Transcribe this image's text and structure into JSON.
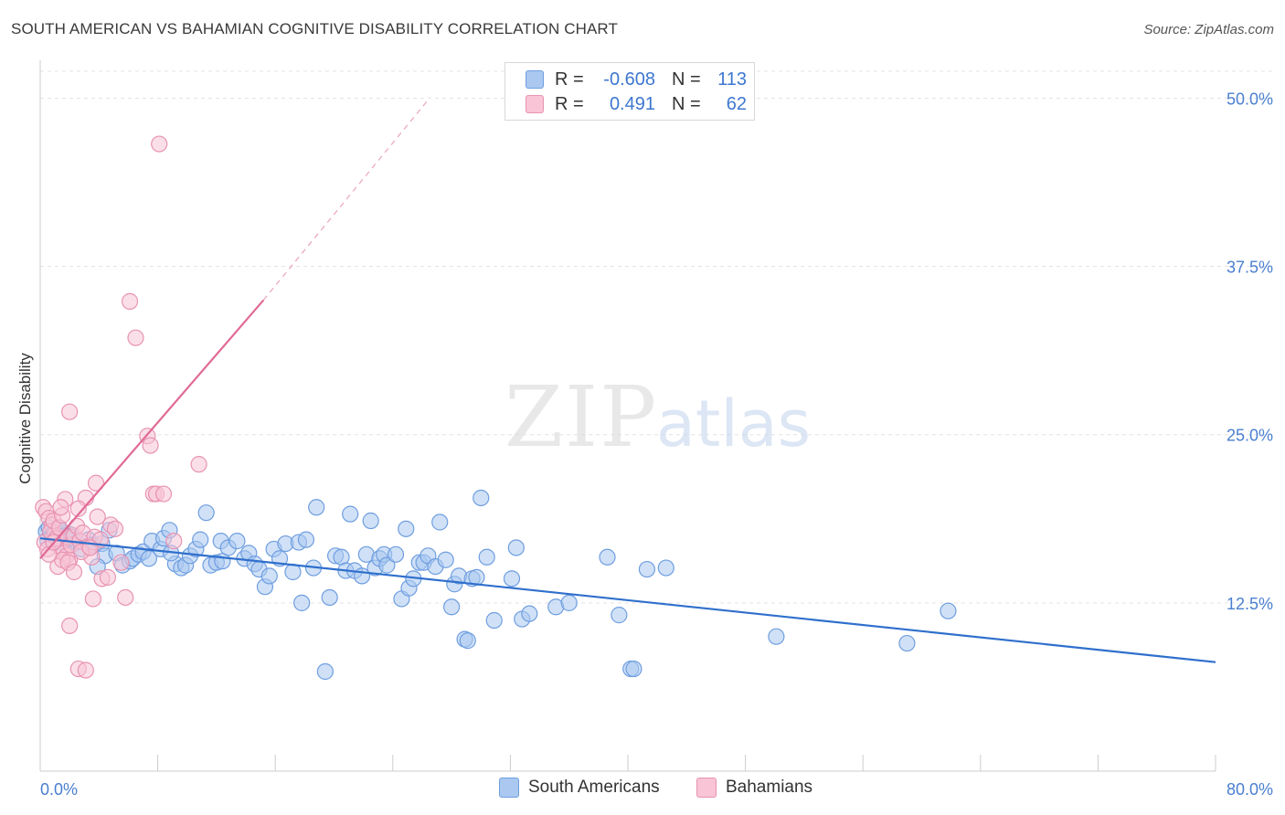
{
  "header": {
    "title": "SOUTH AMERICAN VS BAHAMIAN COGNITIVE DISABILITY CORRELATION CHART",
    "source": "Source: ZipAtlas.com"
  },
  "watermark": {
    "zip": "ZIP",
    "atlas": "atlas"
  },
  "legend": {
    "rows": [
      {
        "r_label": "R =",
        "r_value": "-0.608",
        "n_label": "N =",
        "n_value": "113",
        "color": "#aac8f0",
        "stroke": "#6f9ee0"
      },
      {
        "r_label": "R =",
        "r_value": "0.491",
        "n_label": "N =",
        "n_value": "62",
        "color": "#f8c4d6",
        "stroke": "#e893b2"
      }
    ]
  },
  "chart_data": {
    "type": "scatter",
    "title": "SOUTH AMERICAN VS BAHAMIAN COGNITIVE DISABILITY CORRELATION CHART",
    "xlabel": "",
    "ylabel": "Cognitive Disability",
    "xlim": [
      0,
      80
    ],
    "ylim": [
      0,
      52
    ],
    "x_tick_labels": [
      "0.0%",
      "80.0%"
    ],
    "y_ticks": [
      12.5,
      25.0,
      37.5,
      50.0
    ],
    "y_tick_labels": [
      "12.5%",
      "25.0%",
      "37.5%",
      "50.0%"
    ],
    "grid": true,
    "legend_position": "bottom-center",
    "series": [
      {
        "name": "South Americans",
        "color": "#6f9ee0",
        "fill": "#aac8f0",
        "trend": {
          "x": [
            0,
            80
          ],
          "y": [
            17.3,
            8.1
          ],
          "color": "#2f6fcc"
        },
        "points": [
          [
            0.4,
            17.8
          ],
          [
            0.6,
            18.1
          ],
          [
            0.8,
            17.3
          ],
          [
            1.0,
            17.9
          ],
          [
            1.2,
            17.5
          ],
          [
            1.4,
            17.0
          ],
          [
            1.6,
            17.7
          ],
          [
            1.8,
            17.2
          ],
          [
            2.0,
            17.6
          ],
          [
            2.2,
            17.4
          ],
          [
            0.5,
            17.2
          ],
          [
            0.9,
            17.6
          ],
          [
            1.3,
            18.0
          ],
          [
            1.7,
            17.5
          ],
          [
            2.1,
            17.3
          ],
          [
            2.5,
            17.0
          ],
          [
            2.8,
            16.5
          ],
          [
            3.3,
            17.2
          ],
          [
            3.6,
            16.8
          ],
          [
            4.2,
            16.9
          ],
          [
            4.4,
            16.0
          ],
          [
            4.7,
            17.9
          ],
          [
            5.2,
            16.2
          ],
          [
            5.6,
            15.3
          ],
          [
            6.1,
            15.6
          ],
          [
            6.3,
            15.8
          ],
          [
            6.7,
            16.1
          ],
          [
            7.0,
            16.3
          ],
          [
            7.4,
            15.8
          ],
          [
            7.6,
            17.1
          ],
          [
            8.2,
            16.5
          ],
          [
            8.4,
            17.3
          ],
          [
            8.8,
            17.9
          ],
          [
            9.2,
            15.4
          ],
          [
            9.6,
            15.1
          ],
          [
            9.9,
            15.3
          ],
          [
            10.2,
            16.0
          ],
          [
            10.6,
            16.5
          ],
          [
            10.9,
            17.2
          ],
          [
            11.3,
            19.2
          ],
          [
            11.6,
            15.3
          ],
          [
            12.0,
            15.5
          ],
          [
            12.4,
            15.6
          ],
          [
            12.3,
            17.1
          ],
          [
            12.8,
            16.6
          ],
          [
            13.4,
            17.1
          ],
          [
            13.9,
            15.8
          ],
          [
            14.2,
            16.2
          ],
          [
            14.6,
            15.4
          ],
          [
            14.9,
            15.0
          ],
          [
            15.3,
            13.7
          ],
          [
            15.6,
            14.5
          ],
          [
            15.9,
            16.5
          ],
          [
            16.3,
            15.8
          ],
          [
            16.7,
            16.9
          ],
          [
            17.2,
            14.8
          ],
          [
            17.6,
            17.0
          ],
          [
            17.8,
            12.5
          ],
          [
            18.1,
            17.2
          ],
          [
            18.6,
            15.1
          ],
          [
            18.8,
            19.6
          ],
          [
            19.4,
            7.4
          ],
          [
            19.7,
            12.9
          ],
          [
            20.1,
            16.0
          ],
          [
            20.5,
            15.9
          ],
          [
            20.8,
            14.9
          ],
          [
            21.1,
            19.1
          ],
          [
            21.4,
            14.9
          ],
          [
            21.9,
            14.5
          ],
          [
            22.2,
            16.1
          ],
          [
            22.5,
            18.6
          ],
          [
            22.8,
            15.1
          ],
          [
            23.1,
            15.8
          ],
          [
            23.4,
            16.1
          ],
          [
            23.6,
            15.3
          ],
          [
            24.2,
            16.1
          ],
          [
            24.6,
            12.8
          ],
          [
            24.9,
            18.0
          ],
          [
            25.1,
            13.6
          ],
          [
            25.4,
            14.3
          ],
          [
            25.8,
            15.5
          ],
          [
            26.1,
            15.5
          ],
          [
            26.4,
            16.0
          ],
          [
            26.9,
            15.2
          ],
          [
            27.2,
            18.5
          ],
          [
            27.6,
            15.7
          ],
          [
            28.0,
            12.2
          ],
          [
            28.2,
            13.9
          ],
          [
            28.5,
            14.5
          ],
          [
            28.9,
            9.8
          ],
          [
            29.1,
            9.7
          ],
          [
            29.4,
            14.3
          ],
          [
            29.7,
            14.4
          ],
          [
            30.0,
            20.3
          ],
          [
            30.4,
            15.9
          ],
          [
            30.9,
            11.2
          ],
          [
            32.1,
            14.3
          ],
          [
            32.4,
            16.6
          ],
          [
            32.8,
            11.3
          ],
          [
            33.3,
            11.7
          ],
          [
            35.1,
            12.2
          ],
          [
            36.0,
            12.5
          ],
          [
            38.6,
            15.9
          ],
          [
            39.4,
            11.6
          ],
          [
            40.2,
            7.6
          ],
          [
            40.4,
            7.6
          ],
          [
            41.3,
            15.0
          ],
          [
            42.6,
            15.1
          ],
          [
            50.1,
            10.0
          ],
          [
            59.0,
            9.5
          ],
          [
            61.8,
            11.9
          ],
          [
            3.9,
            15.2
          ],
          [
            8.9,
            16.2
          ]
        ]
      },
      {
        "name": "Bahamians",
        "color": "#e893b2",
        "fill": "#f8c4d6",
        "trend": {
          "x": [
            0,
            15.2
          ],
          "y": [
            15.8,
            35.0
          ],
          "color": "#e06a96"
        },
        "trend_extension": {
          "x": [
            15.2,
            26.5
          ],
          "y": [
            35.0,
            50.0
          ]
        },
        "points": [
          [
            0.2,
            19.6
          ],
          [
            0.4,
            19.3
          ],
          [
            0.6,
            18.8
          ],
          [
            0.8,
            18.3
          ],
          [
            1.0,
            17.6
          ],
          [
            1.2,
            17.2
          ],
          [
            1.4,
            16.6
          ],
          [
            1.6,
            16.2
          ],
          [
            1.8,
            16.0
          ],
          [
            2.0,
            15.7
          ],
          [
            0.3,
            17.0
          ],
          [
            0.5,
            16.5
          ],
          [
            0.7,
            17.8
          ],
          [
            0.9,
            18.6
          ],
          [
            1.1,
            17.3
          ],
          [
            1.3,
            18.1
          ],
          [
            1.5,
            19.0
          ],
          [
            1.7,
            20.2
          ],
          [
            1.9,
            17.4
          ],
          [
            2.1,
            16.8
          ],
          [
            2.3,
            17.5
          ],
          [
            2.5,
            18.2
          ],
          [
            2.7,
            17.1
          ],
          [
            2.9,
            17.7
          ],
          [
            3.1,
            20.3
          ],
          [
            3.3,
            16.7
          ],
          [
            3.5,
            15.9
          ],
          [
            3.7,
            17.4
          ],
          [
            3.9,
            18.9
          ],
          [
            4.1,
            17.2
          ],
          [
            1.2,
            15.2
          ],
          [
            1.5,
            15.7
          ],
          [
            1.9,
            15.5
          ],
          [
            2.3,
            14.8
          ],
          [
            2.8,
            16.3
          ],
          [
            0.6,
            16.1
          ],
          [
            0.9,
            17.0
          ],
          [
            1.4,
            19.6
          ],
          [
            2.6,
            19.5
          ],
          [
            3.4,
            16.6
          ],
          [
            3.8,
            21.4
          ],
          [
            4.2,
            14.3
          ],
          [
            4.6,
            14.4
          ],
          [
            4.8,
            18.3
          ],
          [
            5.1,
            18.0
          ],
          [
            5.5,
            15.5
          ],
          [
            5.8,
            12.9
          ],
          [
            6.1,
            34.9
          ],
          [
            6.5,
            32.2
          ],
          [
            7.3,
            24.9
          ],
          [
            7.5,
            24.2
          ],
          [
            7.7,
            20.6
          ],
          [
            7.9,
            20.6
          ],
          [
            8.1,
            46.6
          ],
          [
            8.4,
            20.6
          ],
          [
            9.1,
            17.1
          ],
          [
            10.8,
            22.8
          ],
          [
            2.0,
            10.8
          ],
          [
            2.6,
            7.6
          ],
          [
            3.1,
            7.5
          ],
          [
            2.0,
            26.7
          ],
          [
            3.6,
            12.8
          ]
        ]
      }
    ]
  }
}
